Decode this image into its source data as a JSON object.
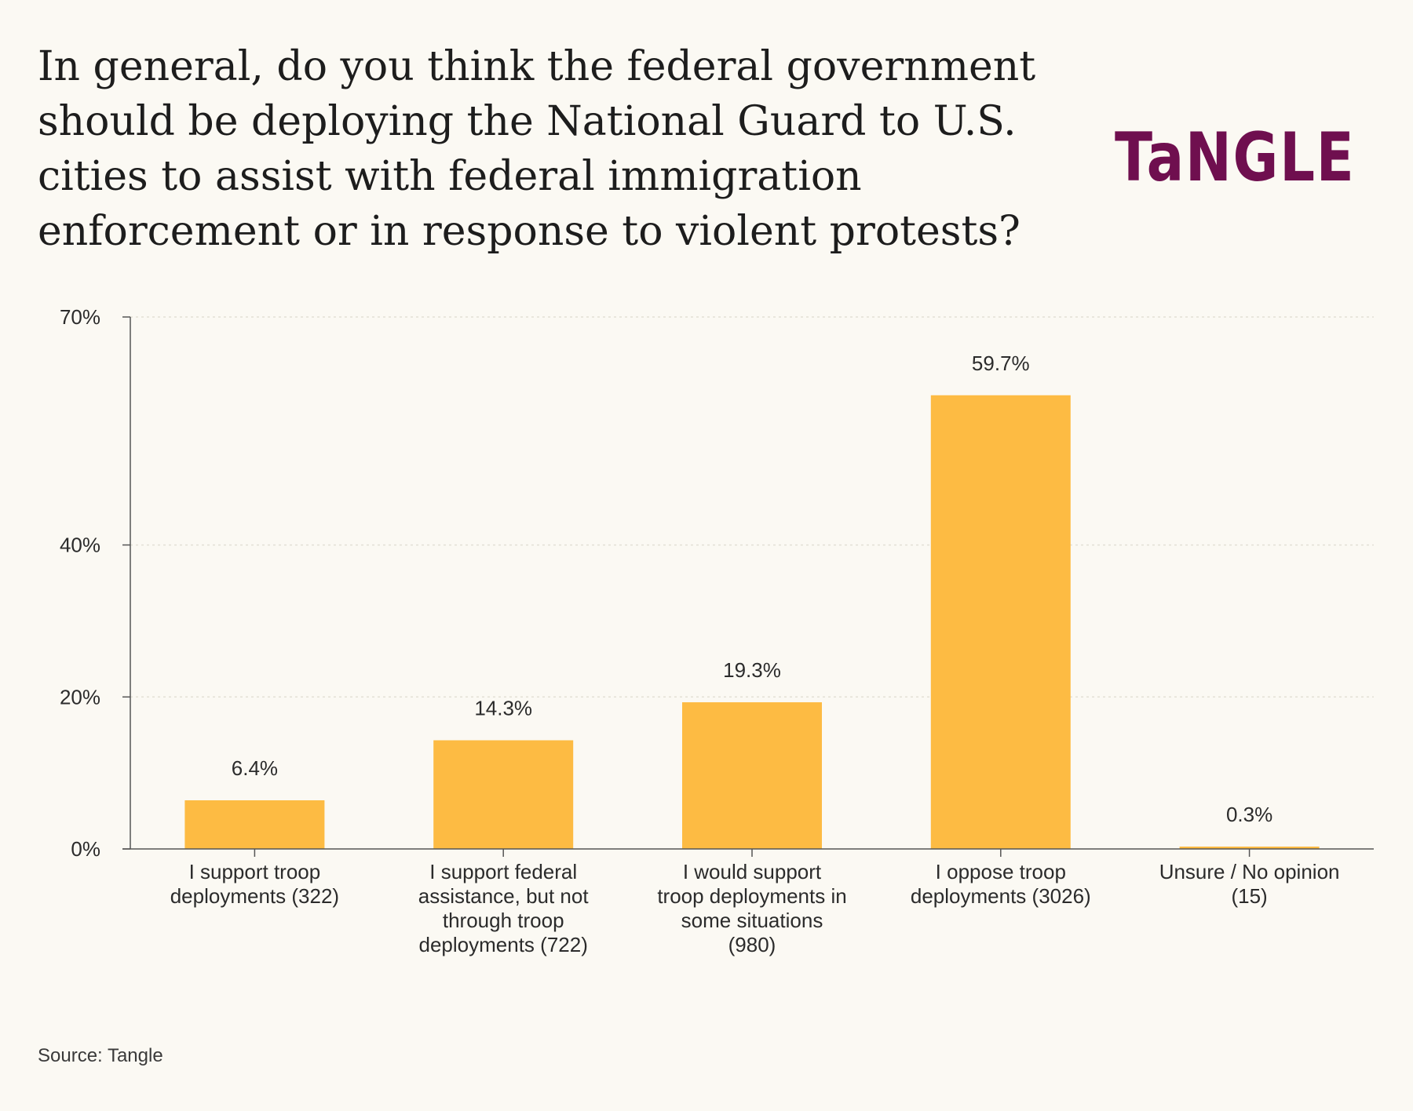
{
  "header": {
    "title_lines": [
      "In general, do you think the federal government",
      "should be deploying the National Guard to U.S.",
      "cities to assist with federal immigration",
      "enforcement or in response to violent protests?"
    ],
    "logo_text": "TaNGLE"
  },
  "footer": {
    "source": "Source: Tangle"
  },
  "colors": {
    "bar": "#fdbb43",
    "axis": "#555555",
    "grid": "#e3e0d6",
    "logo": "#6f0f4f",
    "background": "#fbf9f3"
  },
  "chart_data": {
    "type": "bar",
    "title": "In general, do you think the federal government should be deploying the National Guard to U.S. cities to assist with federal immigration enforcement or in response to violent protests?",
    "xlabel": "",
    "ylabel": "",
    "ylim": [
      0,
      70
    ],
    "yticks": [
      0,
      20,
      40,
      70
    ],
    "ytick_labels": [
      "0%",
      "20%",
      "40%",
      "70%"
    ],
    "grid": true,
    "categories": [
      "I support troop deployments (322)",
      "I support federal assistance, but not through troop deployments (722)",
      "I would support troop deployments in some situations (980)",
      "I oppose troop deployments (3026)",
      "Unsure / No opinion (15)"
    ],
    "category_lines": [
      [
        "I support troop",
        "deployments (322)"
      ],
      [
        "I support federal",
        "assistance, but not",
        "through troop",
        "deployments (722)"
      ],
      [
        "I would support",
        "troop deployments in",
        "some situations",
        "(980)"
      ],
      [
        "I oppose troop",
        "deployments (3026)"
      ],
      [
        "Unsure / No opinion",
        "(15)"
      ]
    ],
    "values": [
      6.4,
      14.3,
      19.3,
      59.7,
      0.3
    ],
    "value_labels": [
      "6.4%",
      "14.3%",
      "19.3%",
      "59.7%",
      "0.3%"
    ]
  }
}
